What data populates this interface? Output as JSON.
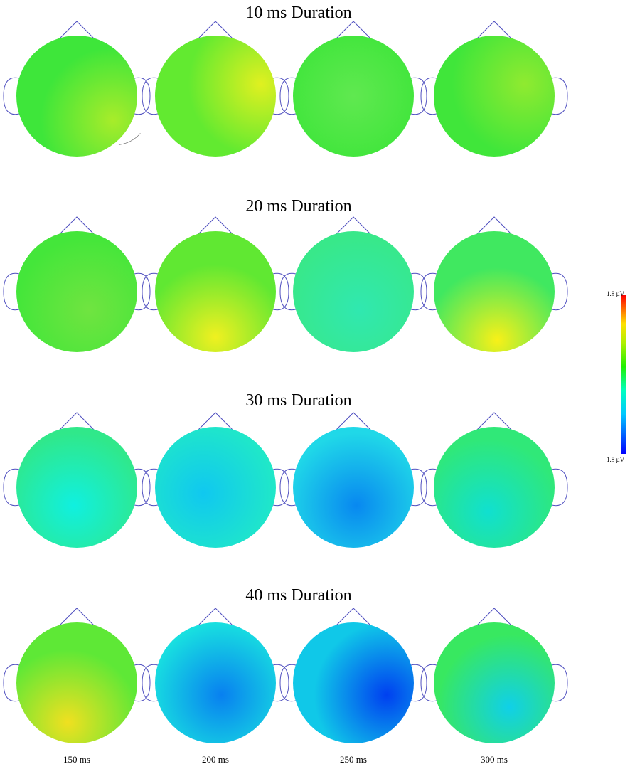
{
  "rows": [
    {
      "title": "10 ms Duration"
    },
    {
      "title": "20 ms Duration"
    },
    {
      "title": "30 ms Duration"
    },
    {
      "title": "40 ms Duration"
    }
  ],
  "time_labels": [
    "150 ms",
    "200 ms",
    "250 ms",
    "300 ms"
  ],
  "colorbar": {
    "max_label": "1.8 µV",
    "min_label": "1.8 µV"
  }
}
